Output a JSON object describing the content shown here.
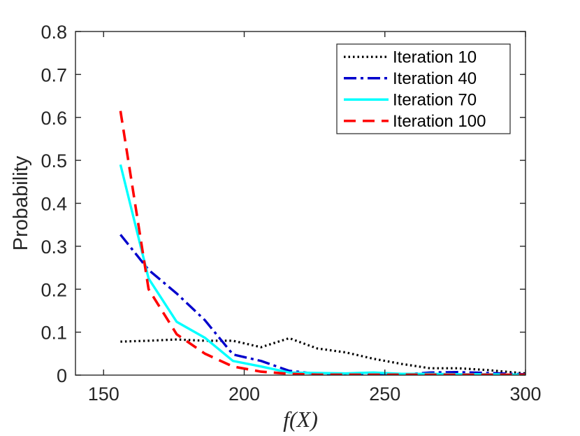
{
  "chart_data": {
    "type": "line",
    "title": "",
    "xlabel": "f(X)",
    "ylabel": "Probability",
    "xlim": [
      140,
      300
    ],
    "ylim": [
      0,
      0.8
    ],
    "xticks": [
      150,
      200,
      250,
      300
    ],
    "yticks": [
      0,
      0.1,
      0.2,
      0.3,
      0.4,
      0.5,
      0.6,
      0.7,
      0.8
    ],
    "xtick_labels": [
      "150",
      "200",
      "250",
      "300"
    ],
    "ytick_labels": [
      "0",
      "0.1",
      "0.2",
      "0.3",
      "0.4",
      "0.5",
      "0.6",
      "0.7",
      "0.8"
    ],
    "grid": false,
    "legend_position": "top-right",
    "series": [
      {
        "name": "Iteration 10",
        "color": "#000000",
        "line_style": "dotted",
        "x": [
          156,
          166,
          176,
          186,
          196,
          206,
          216,
          226,
          236,
          246,
          256,
          266,
          276,
          286,
          300
        ],
        "y": [
          0.078,
          0.08,
          0.083,
          0.08,
          0.08,
          0.065,
          0.086,
          0.062,
          0.053,
          0.038,
          0.026,
          0.016,
          0.016,
          0.012,
          0.004
        ]
      },
      {
        "name": "Iteration 40",
        "color": "#0000cc",
        "line_style": "dashdot",
        "x": [
          156,
          166,
          176,
          186,
          196,
          206,
          216,
          226,
          236,
          246,
          256,
          266,
          276,
          286,
          300
        ],
        "y": [
          0.327,
          0.245,
          0.19,
          0.128,
          0.048,
          0.033,
          0.01,
          0.003,
          0.002,
          0.001,
          0.001,
          0.006,
          0.007,
          0.005,
          0.002
        ]
      },
      {
        "name": "Iteration 70",
        "color": "#00ffff",
        "line_style": "solid",
        "x": [
          156,
          166,
          176,
          186,
          196,
          206,
          216,
          226,
          236,
          246,
          256,
          266,
          276,
          286,
          300
        ],
        "y": [
          0.49,
          0.225,
          0.124,
          0.087,
          0.033,
          0.02,
          0.006,
          0.005,
          0.004,
          0.006,
          0.003,
          0.003,
          0.002,
          0.002,
          0.001
        ]
      },
      {
        "name": "Iteration 100",
        "color": "#ff0000",
        "line_style": "dashed",
        "x": [
          156,
          166,
          176,
          186,
          196,
          206,
          216,
          226,
          236,
          246,
          256,
          266,
          276,
          286,
          300
        ],
        "y": [
          0.615,
          0.2,
          0.095,
          0.05,
          0.02,
          0.008,
          0.003,
          0.001,
          0.001,
          0.001,
          0.001,
          0.001,
          0.001,
          0.001,
          0.001
        ]
      }
    ]
  }
}
